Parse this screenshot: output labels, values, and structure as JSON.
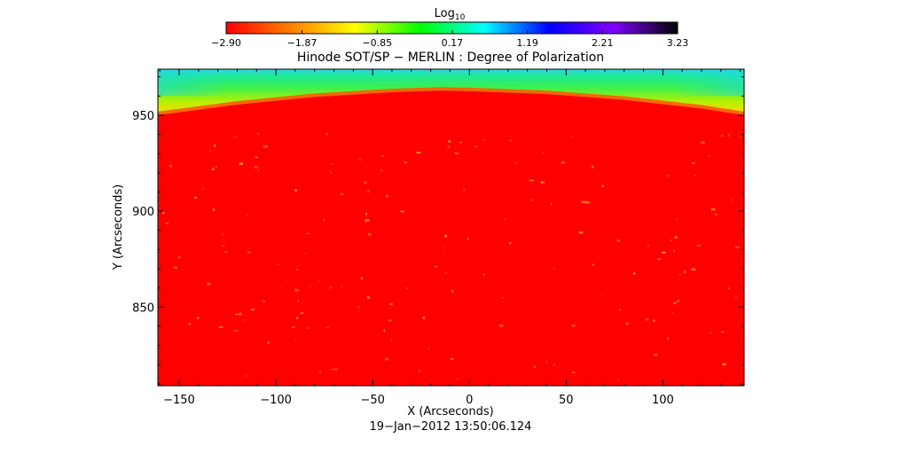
{
  "chart_data": {
    "type": "heatmap",
    "title": "Hinode SOT/SP − MERLIN : Degree of Polarization",
    "xlabel": "X (Arcseconds)",
    "ylabel": "Y (Arcseconds)",
    "footer": "19−Jan−2012 13:50:06.124",
    "x_ticks": [
      "−150",
      "−100",
      "−50",
      "0",
      "50",
      "100"
    ],
    "x_tick_values": [
      -150,
      -100,
      -50,
      0,
      50,
      100
    ],
    "y_ticks": [
      "850",
      "900",
      "950"
    ],
    "y_tick_values": [
      850,
      900,
      950
    ],
    "xlim": [
      -161,
      142
    ],
    "ylim": [
      809,
      974
    ],
    "colorbar": {
      "label_main": "Log",
      "label_sub": "10",
      "ticks": [
        "−2.90",
        "−1.87",
        "−0.85",
        "0.17",
        "1.19",
        "2.21",
        "3.23"
      ],
      "tick_values": [
        -2.9,
        -1.87,
        -0.85,
        0.17,
        1.19,
        2.21,
        3.23
      ],
      "range": [
        -2.9,
        3.23
      ],
      "colors": [
        "#ff0000",
        "#ff8000",
        "#ffff00",
        "#00ff00",
        "#00ffff",
        "#0000ff",
        "#8000ff",
        "#000000"
      ]
    },
    "limb": {
      "description_in_data_units": "solar limb edge Y position vs X",
      "x": [
        -161,
        -120,
        -80,
        -40,
        -15,
        0,
        40,
        80,
        120,
        142
      ],
      "y": [
        950,
        955.5,
        959.5,
        962,
        962.8,
        962.5,
        961,
        958,
        953.5,
        950
      ]
    },
    "disk_value": -2.9,
    "off_limb_values": [
      0.0,
      1.2
    ]
  }
}
